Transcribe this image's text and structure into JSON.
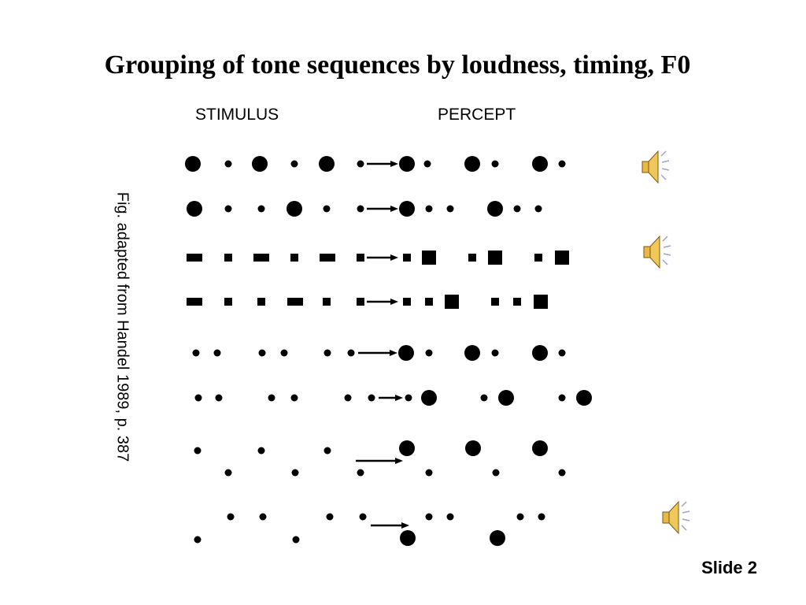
{
  "title": "Grouping of tone sequences by loudness, timing, F0",
  "labels": {
    "stimulus": "STIMULUS",
    "percept": "PERCEPT"
  },
  "caption": "Fig. adapted from Handel 1989, p. 387",
  "footer": "Slide 2"
}
